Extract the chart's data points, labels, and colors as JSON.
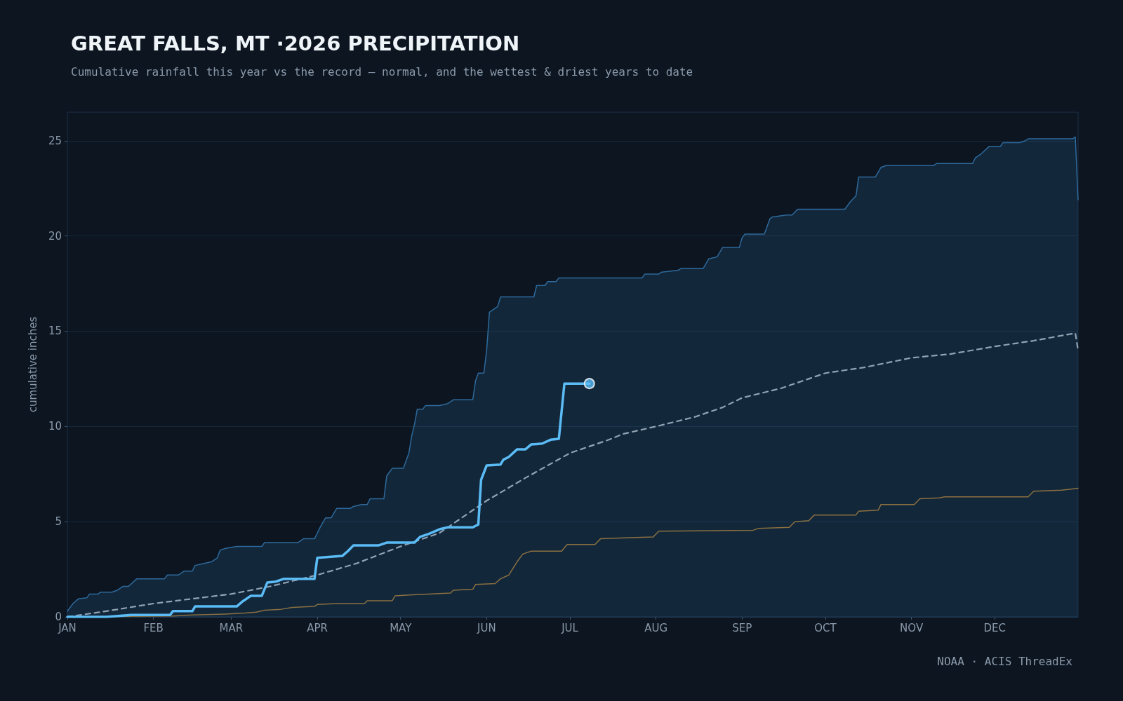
{
  "chart_data": {
    "type": "line",
    "title": "GREAT FALLS, MT ·2026 PRECIPITATION",
    "subtitle": "Cumulative rainfall this year vs the record — normal, and the wettest & driest years to date",
    "ylabel": "cumulative inches",
    "annotations": [
      "NOAA · ACIS ThreadEx"
    ],
    "xlim": [
      "--01-01",
      "--12-31"
    ],
    "ylim": [
      0,
      26.5
    ],
    "xticks": [
      {
        "value": "--01-01",
        "label": "JAN"
      },
      {
        "value": "--02-01",
        "label": "FEB"
      },
      {
        "value": "--03-01",
        "label": "MAR"
      },
      {
        "value": "--04-01",
        "label": "APR"
      },
      {
        "value": "--05-01",
        "label": "MAY"
      },
      {
        "value": "--06-01",
        "label": "JUN"
      },
      {
        "value": "--07-01",
        "label": "JUL"
      },
      {
        "value": "--08-01",
        "label": "AUG"
      },
      {
        "value": "--09-01",
        "label": "SEP"
      },
      {
        "value": "--10-01",
        "label": "OCT"
      },
      {
        "value": "--11-01",
        "label": "NOV"
      },
      {
        "value": "--12-01",
        "label": "DEC"
      }
    ],
    "yticks": [
      0,
      5,
      10,
      15,
      20,
      25
    ],
    "grid": "y",
    "series": [
      {
        "type": "area",
        "color": "#2e6a9c",
        "x": [
          "--01-01",
          "--01-03",
          "--01-05",
          "--01-08",
          "--01-09",
          "--01-12",
          "--01-13",
          "--01-17",
          "--01-19",
          "--01-21",
          "--01-23",
          "--01-26",
          "--02-05",
          "--02-06",
          "--02-10",
          "--02-12",
          "--02-15",
          "--02-16",
          "--02-19",
          "--02-22",
          "--02-24",
          "--02-25",
          "--02-27",
          "--03-03",
          "--03-12",
          "--03-13",
          "--03-25",
          "--03-27",
          "--03-31",
          "--04-01",
          "--04-02",
          "--04-04",
          "--04-06",
          "--04-08",
          "--04-13",
          "--04-14",
          "--04-17",
          "--04-19",
          "--04-20",
          "--04-25",
          "--04-26",
          "--04-27",
          "--04-28",
          "--05-02",
          "--05-04",
          "--05-05",
          "--05-06",
          "--05-07",
          "--05-09",
          "--05-10",
          "--05-15",
          "--05-18",
          "--05-20",
          "--05-27",
          "--05-28",
          "--05-29",
          "--05-31",
          "--06-01",
          "--06-02",
          "--06-04",
          "--06-05",
          "--06-06",
          "--06-18",
          "--06-19",
          "--06-22",
          "--06-23",
          "--06-26",
          "--06-27",
          "--07-27",
          "--07-28",
          "--08-02",
          "--08-03",
          "--08-09",
          "--08-10",
          "--08-18",
          "--08-20",
          "--08-23",
          "--08-25",
          "--08-31",
          "--09-01",
          "--09-02",
          "--09-09",
          "--09-11",
          "--09-12",
          "--09-17",
          "--09-19",
          "--09-21",
          "--10-08",
          "--10-10",
          "--10-12",
          "--10-13",
          "--10-19",
          "--10-21",
          "--10-23",
          "--11-09",
          "--11-10",
          "--11-23",
          "--11-24",
          "--11-26",
          "--11-29",
          "--12-03",
          "--12-04",
          "--12-10",
          "--12-12",
          "--12-13",
          "--12-29",
          "--12-30",
          "--12-31"
        ],
        "values": [
          0.3,
          0.7,
          0.95,
          1.0,
          1.2,
          1.2,
          1.3,
          1.3,
          1.4,
          1.6,
          1.6,
          2.0,
          2.0,
          2.2,
          2.2,
          2.4,
          2.4,
          2.7,
          2.8,
          2.9,
          3.1,
          3.5,
          3.6,
          3.7,
          3.7,
          3.9,
          3.9,
          4.1,
          4.1,
          4.4,
          4.7,
          5.2,
          5.2,
          5.7,
          5.7,
          5.8,
          5.9,
          5.9,
          6.2,
          6.2,
          7.4,
          7.6,
          7.8,
          7.8,
          8.6,
          9.5,
          10.1,
          10.9,
          10.9,
          11.1,
          11.1,
          11.2,
          11.4,
          11.4,
          12.4,
          12.8,
          12.8,
          14.0,
          16.0,
          16.2,
          16.3,
          16.8,
          16.8,
          17.4,
          17.4,
          17.6,
          17.6,
          17.8,
          17.8,
          18.0,
          18.0,
          18.1,
          18.2,
          18.3,
          18.3,
          18.8,
          18.9,
          19.4,
          19.4,
          19.9,
          20.1,
          20.1,
          20.9,
          21.0,
          21.1,
          21.1,
          21.4,
          21.4,
          21.8,
          22.1,
          23.1,
          23.1,
          23.6,
          23.7,
          23.7,
          23.8,
          23.8,
          24.1,
          24.3,
          24.7,
          24.7,
          24.9,
          24.9,
          25.0,
          25.1,
          25.1,
          25.2,
          21.9
        ]
      },
      {
        "color": "#8a7040",
        "x": [
          "--01-01",
          "--02-08",
          "--02-15",
          "--02-27",
          "--03-06",
          "--03-10",
          "--03-13",
          "--03-19",
          "--03-23",
          "--03-31",
          "--04-01",
          "--04-08",
          "--04-18",
          "--04-19",
          "--04-28",
          "--04-29",
          "--05-04",
          "--05-11",
          "--05-19",
          "--05-20",
          "--05-27",
          "--05-28",
          "--06-04",
          "--06-06",
          "--06-09",
          "--06-12",
          "--06-14",
          "--06-17",
          "--06-28",
          "--06-30",
          "--07-10",
          "--07-12",
          "--07-21",
          "--07-31",
          "--08-02",
          "--09-05",
          "--09-07",
          "--09-18",
          "--09-20",
          "--09-25",
          "--09-27",
          "--10-12",
          "--10-13",
          "--10-20",
          "--10-21",
          "--11-02",
          "--11-04",
          "--11-11",
          "--11-13",
          "--12-13",
          "--12-15",
          "--12-25",
          "--12-31"
        ],
        "values": [
          0,
          0.05,
          0.1,
          0.15,
          0.2,
          0.25,
          0.35,
          0.4,
          0.5,
          0.55,
          0.65,
          0.7,
          0.7,
          0.85,
          0.85,
          1.1,
          1.15,
          1.2,
          1.25,
          1.4,
          1.45,
          1.7,
          1.75,
          2.0,
          2.2,
          2.9,
          3.3,
          3.45,
          3.45,
          3.8,
          3.8,
          4.1,
          4.15,
          4.2,
          4.5,
          4.55,
          4.65,
          4.7,
          5.0,
          5.05,
          5.35,
          5.35,
          5.55,
          5.6,
          5.9,
          5.9,
          6.2,
          6.25,
          6.3,
          6.3,
          6.6,
          6.65,
          6.75
        ]
      },
      {
        "color": "#8fa3b3",
        "line_style": "dashed",
        "x": [
          "--01-01",
          "--01-15",
          "--02-01",
          "--02-15",
          "--03-01",
          "--03-15",
          "--04-01",
          "--04-15",
          "--05-01",
          "--05-15",
          "--06-01",
          "--06-15",
          "--07-01",
          "--07-15",
          "--07-20",
          "--08-01",
          "--08-15",
          "--08-25",
          "--09-01",
          "--09-15",
          "--10-01",
          "--10-15",
          "--11-01",
          "--11-15",
          "--12-01",
          "--12-15",
          "--12-30",
          "--12-31"
        ],
        "values": [
          0,
          0.3,
          0.7,
          0.95,
          1.2,
          1.6,
          2.2,
          2.8,
          3.7,
          4.4,
          6.1,
          7.3,
          8.6,
          9.3,
          9.6,
          10.0,
          10.5,
          11.0,
          11.5,
          12.0,
          12.8,
          13.1,
          13.6,
          13.8,
          14.2,
          14.5,
          14.9,
          14.0
        ]
      },
      {
        "color": "#5bbcf5",
        "x": [
          "--01-01",
          "--01-15",
          "--01-24",
          "--02-07",
          "--02-08",
          "--02-15",
          "--02-16",
          "--03-03",
          "--03-05",
          "--03-08",
          "--03-12",
          "--03-14",
          "--03-17",
          "--03-20",
          "--03-31",
          "--04-01",
          "--04-10",
          "--04-12",
          "--04-14",
          "--04-23",
          "--04-26",
          "--05-06",
          "--05-08",
          "--05-11",
          "--05-15",
          "--05-18",
          "--05-27",
          "--05-29",
          "--05-30",
          "--06-01",
          "--06-06",
          "--06-07",
          "--06-09",
          "--06-12",
          "--06-15",
          "--06-17",
          "--06-21",
          "--06-24",
          "--06-27",
          "--06-29",
          "--07-08"
        ],
        "values": [
          0,
          0,
          0.1,
          0.1,
          0.3,
          0.3,
          0.55,
          0.55,
          0.8,
          1.1,
          1.1,
          1.8,
          1.85,
          2.0,
          2.0,
          3.1,
          3.2,
          3.45,
          3.75,
          3.75,
          3.9,
          3.9,
          4.2,
          4.35,
          4.6,
          4.7,
          4.7,
          4.85,
          7.2,
          7.95,
          8.0,
          8.25,
          8.4,
          8.8,
          8.8,
          9.05,
          9.1,
          9.3,
          9.35,
          12.25,
          12.25
        ]
      },
      {
        "type": "scatter",
        "color": "#5bbcf5",
        "marker": "circle",
        "x": [
          "--07-08"
        ],
        "values": [
          12.25
        ]
      }
    ]
  }
}
